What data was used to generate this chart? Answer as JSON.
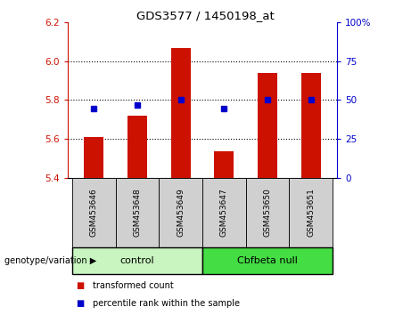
{
  "title": "GDS3577 / 1450198_at",
  "samples": [
    "GSM453646",
    "GSM453648",
    "GSM453649",
    "GSM453647",
    "GSM453650",
    "GSM453651"
  ],
  "group_labels": [
    "control",
    "Cbfbeta null"
  ],
  "bar_values": [
    5.61,
    5.72,
    6.065,
    5.535,
    5.94,
    5.94
  ],
  "dot_values": [
    5.755,
    5.775,
    5.8,
    5.755,
    5.8,
    5.8
  ],
  "bar_bottom": 5.4,
  "ylim_left": [
    5.4,
    6.2
  ],
  "ylim_right": [
    0,
    100
  ],
  "yticks_left": [
    5.4,
    5.6,
    5.8,
    6.0,
    6.2
  ],
  "yticks_right": [
    0,
    25,
    50,
    75,
    100
  ],
  "bar_color": "#cc1100",
  "dot_color": "#0000cc",
  "group_colors": [
    "#c8f5c0",
    "#44dd44"
  ],
  "tick_color_left": "#cc1100",
  "tick_color_right": "#0000cc",
  "legend_items": [
    "transformed count",
    "percentile rank within the sample"
  ],
  "genotype_label": "genotype/variation",
  "sample_bg_color": "#d0d0d0",
  "grid_linestyle": "dotted",
  "grid_vals": [
    5.6,
    5.8,
    6.0
  ]
}
